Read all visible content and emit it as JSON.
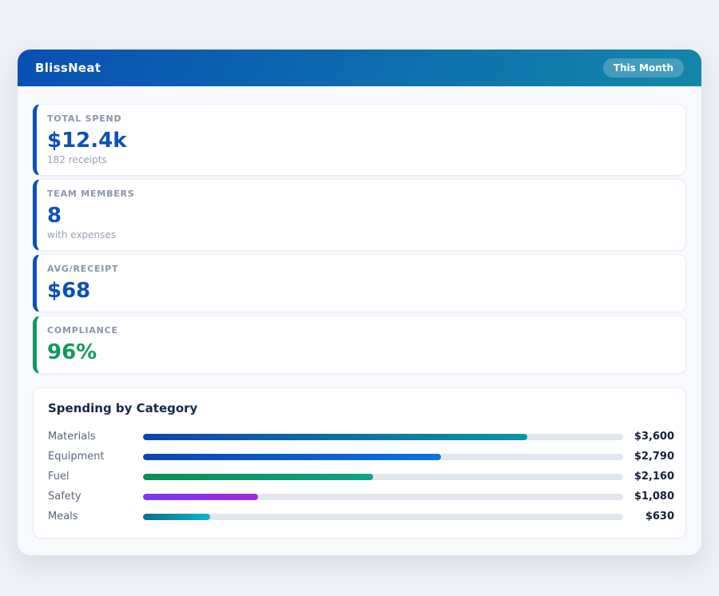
{
  "header": {
    "title": "BlissNeat",
    "badge": "This Month",
    "gradient_from": "#0a4fb4",
    "gradient_to": "#1187a9"
  },
  "stats": [
    {
      "label": "TOTAL SPEND",
      "value": "$12.4k",
      "sub": "182 receipts",
      "accent": "#0b51b8"
    },
    {
      "label": "TEAM MEMBERS",
      "value": "8",
      "sub": "with expenses",
      "accent": "#0b51b8"
    },
    {
      "label": "AVG/RECEIPT",
      "value": "$68",
      "sub": "",
      "accent": "#0b51b8"
    },
    {
      "label": "COMPLIANCE",
      "value": "96%",
      "sub": "",
      "accent": "#0f9a60"
    }
  ],
  "chart_data": {
    "type": "bar",
    "orientation": "horizontal",
    "title": "Spending by Category",
    "categories": [
      "Materials",
      "Equipment",
      "Fuel",
      "Safety",
      "Meals"
    ],
    "values": [
      3600,
      2790,
      2160,
      1080,
      630
    ],
    "value_labels": [
      "$3,600",
      "$2,790",
      "$2,160",
      "$1,080",
      "$630"
    ],
    "xlim": [
      0,
      4500
    ],
    "grid": false,
    "legend": false,
    "track_color": "#e2e7ee",
    "bar_colors": [
      {
        "from": "#0b46ab",
        "to": "#0e94a5"
      },
      {
        "from": "#0b46ab",
        "to": "#0b74e0"
      },
      {
        "from": "#0e8c52",
        "to": "#13a18c"
      },
      {
        "from": "#7a3bee",
        "to": "#a228e0"
      },
      {
        "from": "#0f6e8e",
        "to": "#0cb2d6"
      }
    ]
  }
}
